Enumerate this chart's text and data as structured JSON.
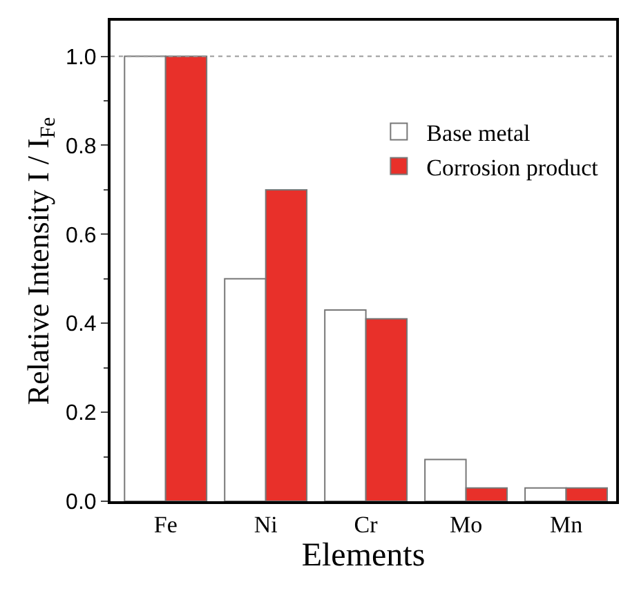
{
  "chart_data": {
    "type": "bar",
    "xlabel": "Elements",
    "ylabel": "Relative Intensity I / I$_{Fe}$",
    "categories": [
      "Fe",
      "Ni",
      "Cr",
      "Mo",
      "Mn"
    ],
    "series": [
      {
        "name": "Base metal",
        "color": "#ffffff",
        "values": [
          1.0,
          0.5,
          0.43,
          0.094,
          0.03
        ]
      },
      {
        "name": "Corrosion product",
        "color": "#e8302a",
        "values": [
          1.0,
          0.7,
          0.41,
          0.03,
          0.03
        ]
      }
    ],
    "ylim": [
      0,
      1.08
    ],
    "yticks": [
      {
        "value": 0,
        "label": "0.0"
      },
      0.2,
      0.4,
      0.6,
      0.8,
      {
        "value": 1,
        "label": "1.0"
      }
    ],
    "ref_lines": [
      {
        "axis": "y",
        "value": 1.0,
        "color": "#999999",
        "line_style": "dotted"
      }
    ],
    "legend": "top right"
  }
}
